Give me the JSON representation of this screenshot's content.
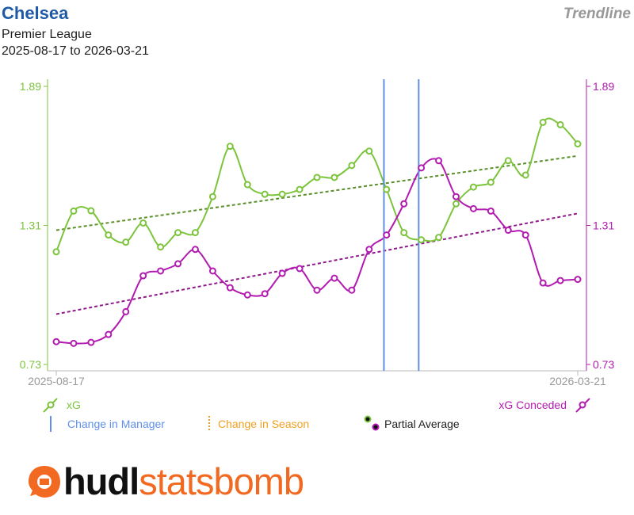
{
  "header": {
    "title": "Chelsea",
    "league": "Premier League",
    "date_range": "2025-08-17 to 2026-03-21",
    "chart_kind_label": "Trendline"
  },
  "brand": {
    "word1": "hudl",
    "word2": "statsbomb",
    "accent": "#f26a21",
    "dark": "#111111"
  },
  "colors": {
    "xg": "#7dc43d",
    "xg_trend": "#5a8f2a",
    "xg_conceded": "#b21bb0",
    "xg_conceded_trend": "#8e1a8c",
    "manager_change": "#5f8fe8",
    "season_change": "#f0a020",
    "axis": "#bbbbbb"
  },
  "chart_data": {
    "type": "line",
    "x_start_label": "2025-08-17",
    "x_end_label": "2026-03-21",
    "ylim": [
      0.73,
      1.89
    ],
    "yticks_left": [
      "1.89",
      "1.31",
      "0.73"
    ],
    "yticks_right": [
      "1.89",
      "1.31",
      "0.73"
    ],
    "series": [
      {
        "name": "xG",
        "axis": "left",
        "values": [
          1.2,
          1.37,
          1.371,
          1.27,
          1.24,
          1.32,
          1.22,
          1.28,
          1.28,
          1.43,
          1.64,
          1.48,
          1.44,
          1.44,
          1.46,
          1.51,
          1.51,
          1.56,
          1.62,
          1.46,
          1.28,
          1.25,
          1.26,
          1.4,
          1.47,
          1.49,
          1.58,
          1.52,
          1.74,
          1.73,
          1.65
        ],
        "trend": [
          1.29,
          1.6
        ]
      },
      {
        "name": "xG Conceded",
        "axis": "right",
        "values": [
          0.825,
          0.818,
          0.822,
          0.855,
          0.95,
          1.1,
          1.12,
          1.15,
          1.21,
          1.12,
          1.05,
          1.02,
          1.025,
          1.11,
          1.13,
          1.04,
          1.09,
          1.04,
          1.21,
          1.27,
          1.4,
          1.55,
          1.58,
          1.43,
          1.38,
          1.37,
          1.29,
          1.27,
          1.07,
          1.08,
          1.085
        ],
        "trend": [
          0.94,
          1.36
        ]
      }
    ],
    "markers": [
      {
        "type": "Change in Manager",
        "index": 18.85
      },
      {
        "type": "Change in Manager",
        "index": 20.85
      }
    ],
    "legend": {
      "xg": "xG",
      "xg_conceded": "xG Conceded",
      "manager": "Change in Manager",
      "season": "Change in Season",
      "partial": "Partial Average"
    }
  }
}
